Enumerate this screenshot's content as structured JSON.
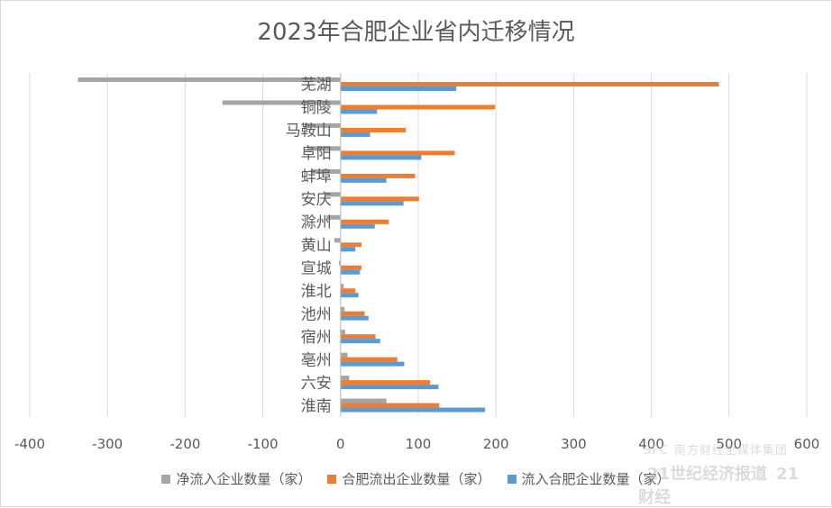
{
  "chart_data": {
    "type": "bar",
    "orientation": "horizontal",
    "title": "2023年合肥企业省内迁移情况",
    "categories": [
      "芜湖",
      "铜陵",
      "马鞍山",
      "阜阳",
      "蚌埠",
      "安庆",
      "滁州",
      "黄山",
      "宣城",
      "淮北",
      "池州",
      "宿州",
      "亳州",
      "六安",
      "淮南"
    ],
    "series": [
      {
        "name": "净流入企业数量（家）",
        "color": "#a5a5a5",
        "values": [
          -338,
          -152,
          -46,
          -43,
          -37,
          -20,
          -18,
          -8,
          -2,
          4,
          5,
          6,
          9,
          11,
          59
        ]
      },
      {
        "name": "合肥流出企业数量（家）",
        "color": "#ed7d31",
        "values": [
          487,
          199,
          84,
          147,
          96,
          101,
          62,
          27,
          27,
          19,
          31,
          45,
          73,
          115,
          127
        ]
      },
      {
        "name": "流入合肥企业数量（家）",
        "color": "#5b9bd5",
        "values": [
          149,
          47,
          38,
          104,
          59,
          81,
          44,
          19,
          25,
          23,
          36,
          51,
          82,
          126,
          186
        ]
      }
    ],
    "xlim": [
      -400,
      600
    ],
    "xticks": [
      -400,
      -300,
      -200,
      -100,
      0,
      100,
      200,
      300,
      400,
      500,
      600
    ],
    "grid": true,
    "legend_position": "bottom"
  },
  "watermark": {
    "logo": "SFC",
    "line1": "南方财经全媒体集团",
    "line2": "21世纪经济报道",
    "brand": "21财经"
  }
}
